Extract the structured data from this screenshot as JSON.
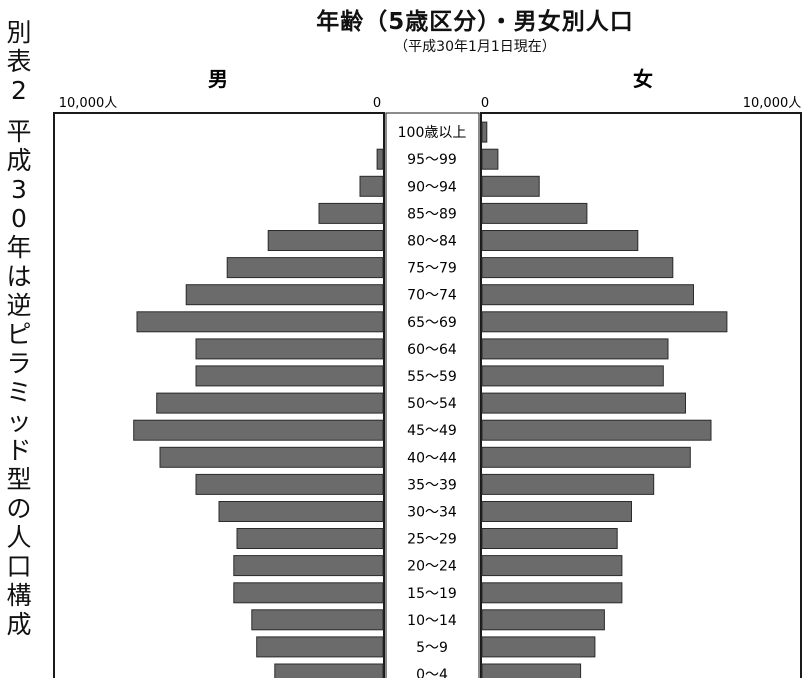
{
  "side_caption": "別表2 平成30年は逆ピラミッド型の人口構成",
  "chart_data": {
    "type": "bar",
    "orientation": "horizontal-population-pyramid",
    "title": "年齢（5歳区分）・男女別人口",
    "subtitle": "（平成30年1月1日現在）",
    "left_label": "男",
    "right_label": "女",
    "left_axis_ticks": [
      "10,000人",
      "0"
    ],
    "right_axis_ticks": [
      "0",
      "10,000人"
    ],
    "xlim": [
      0,
      10000
    ],
    "categories": [
      "100歳以上",
      "95〜99",
      "90〜94",
      "85〜89",
      "80〜84",
      "75〜79",
      "70〜74",
      "65〜69",
      "60〜64",
      "55〜59",
      "50〜54",
      "45〜49",
      "40〜44",
      "35〜39",
      "30〜34",
      "25〜29",
      "20〜24",
      "15〜19",
      "10〜14",
      "5〜9",
      "0〜4"
    ],
    "series": [
      {
        "name": "男",
        "values": [
          0,
          180,
          700,
          1950,
          3500,
          4750,
          6000,
          7500,
          5700,
          5700,
          6900,
          7600,
          6800,
          5700,
          5000,
          4450,
          4550,
          4550,
          4000,
          3850,
          3300
        ]
      },
      {
        "name": "女",
        "values": [
          150,
          500,
          1800,
          3300,
          4900,
          6000,
          6650,
          7700,
          5850,
          5700,
          6400,
          7200,
          6550,
          5400,
          4700,
          4250,
          4400,
          4400,
          3850,
          3550,
          3100
        ]
      }
    ],
    "colors": {
      "bar_fill": "#6b6b6b",
      "bar_edge": "#2b2b2b",
      "frame": "#1a1a1a"
    }
  }
}
